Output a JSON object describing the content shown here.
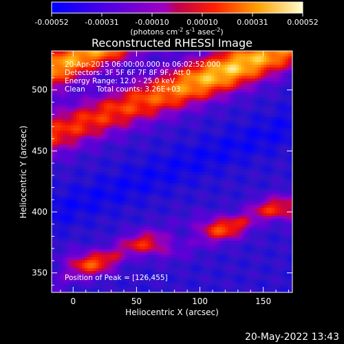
{
  "chart_data": {
    "type": "heatmap",
    "title": "Reconstructed RHESSI Image",
    "xlabel": "Heliocentric X (arcsec)",
    "ylabel": "Heliocentric Y (arcsec)",
    "xlim": [
      -17,
      173
    ],
    "ylim": [
      334,
      532
    ],
    "xticks": [
      0,
      50,
      100,
      150
    ],
    "yticks": [
      350,
      400,
      450,
      500
    ],
    "colorbar": {
      "range": [
        -0.00052,
        0.00052
      ],
      "ticks": [
        "-0.00052",
        "-0.00031",
        "-0.00010",
        "0.00010",
        "0.00031",
        "0.00052"
      ],
      "units_main": "(photons cm",
      "units_exp1": "-2",
      "units_mid": " s",
      "units_exp2": "-1",
      "units_tail": " asec",
      "units_exp3": "-2",
      "units_close": ")"
    },
    "annotations": [
      "20-Apr-2015 06:00:00.000 to 06:02:52.000",
      "Detectors: 3F 5F 6F 7F 8F 9F, Att 0",
      "Energy Range: 12.0 - 25.0 keV",
      "Clean     Total counts: 3.26E+03"
    ],
    "peak_label": "Position of Peak = [126,455]",
    "peak": [
      126,
      455
    ],
    "colors": {
      "background": "#000000",
      "text": "#ffffff"
    }
  },
  "datestamp": "20-May-2022 13:43"
}
